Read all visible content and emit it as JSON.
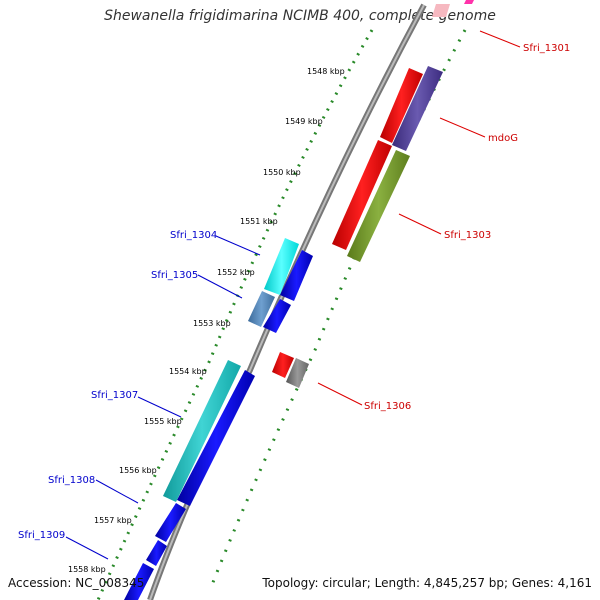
{
  "title": "Shewanella frigidimarina NCIMB 400, complete genome",
  "footer": {
    "accession": "Accession: NC_008345",
    "topology": "Topology: circular; Length: 4,845,257 bp; Genes: 4,161"
  },
  "ticks": [
    "1548 kbp",
    "1549 kbp",
    "1550 kbp",
    "1551 kbp",
    "1552 kbp",
    "1553 kbp",
    "1554 kbp",
    "1555 kbp",
    "1556 kbp",
    "1557 kbp",
    "1558 kbp"
  ],
  "gene_labels": {
    "sfri_1301": "Sfri_1301",
    "mdog": "mdoG",
    "sfri_1303": "Sfri_1303",
    "sfri_1304": "Sfri_1304",
    "sfri_1305": "Sfri_1305",
    "sfri_1306": "Sfri_1306",
    "sfri_1307": "Sfri_1307",
    "sfri_1308": "Sfri_1308",
    "sfri_1309": "Sfri_1309"
  },
  "colors": {
    "forward_label": "#0000cc",
    "reverse_label": "#cc0000",
    "tick_dots": "#2a8a2a",
    "backbone": "#888888"
  }
}
